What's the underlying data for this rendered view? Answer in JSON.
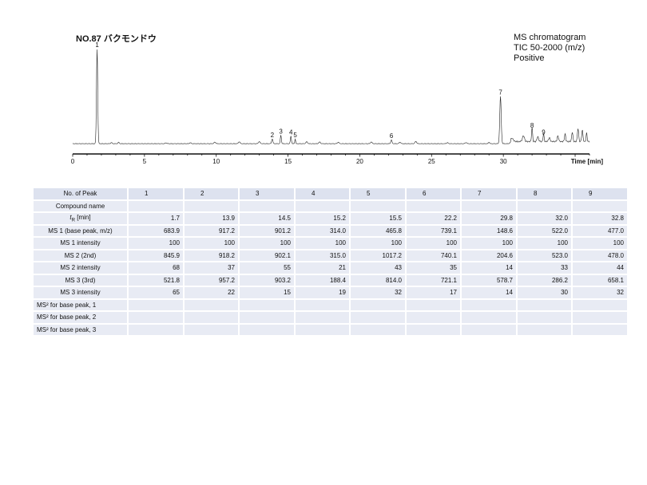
{
  "header": {
    "title": "NO.87 バクモンドウ",
    "info_lines": [
      "MS chromatogram",
      "TIC 50-2000 (m/z)",
      "Positive"
    ]
  },
  "chart_data": {
    "type": "line",
    "xlabel": "Time [min]",
    "xlim": [
      0,
      36
    ],
    "x_ticks": [
      0,
      5,
      10,
      15,
      20,
      25,
      30
    ],
    "ylabel": "",
    "ylim": [
      0,
      100
    ],
    "grid": false,
    "peaks": [
      {
        "label": "1",
        "x": 1.7,
        "y": 100
      },
      {
        "label": "2",
        "x": 13.9,
        "y": 5
      },
      {
        "label": "3",
        "x": 14.5,
        "y": 9
      },
      {
        "label": "4",
        "x": 15.2,
        "y": 8
      },
      {
        "label": "5",
        "x": 15.5,
        "y": 5
      },
      {
        "label": "6",
        "x": 22.2,
        "y": 4
      },
      {
        "label": "7",
        "x": 29.8,
        "y": 50
      },
      {
        "label": "8",
        "x": 32.0,
        "y": 15
      },
      {
        "label": "9",
        "x": 32.8,
        "y": 8
      }
    ]
  },
  "table": {
    "columns": [
      "No. of Peak",
      "1",
      "2",
      "3",
      "4",
      "5",
      "6",
      "7",
      "8",
      "9"
    ],
    "rows": [
      {
        "label": "Compound name",
        "cells": [
          "",
          "",
          "",
          "",
          "",
          "",
          "",
          "",
          ""
        ]
      },
      {
        "label": "t",
        "label_sub": "R",
        "label_rest": " [min]",
        "cells": [
          "1.7",
          "13.9",
          "14.5",
          "15.2",
          "15.5",
          "22.2",
          "29.8",
          "32.0",
          "32.8"
        ]
      },
      {
        "label": "MS 1 (base peak, m/z)",
        "cells": [
          "683.9",
          "917.2",
          "901.2",
          "314.0",
          "465.8",
          "739.1",
          "148.6",
          "522.0",
          "477.0"
        ]
      },
      {
        "label": "MS 1 intensity",
        "cells": [
          "100",
          "100",
          "100",
          "100",
          "100",
          "100",
          "100",
          "100",
          "100"
        ]
      },
      {
        "label": "MS 2 (2nd)",
        "cells": [
          "845.9",
          "918.2",
          "902.1",
          "315.0",
          "1017.2",
          "740.1",
          "204.6",
          "523.0",
          "478.0"
        ]
      },
      {
        "label": "MS 2 intensity",
        "cells": [
          "68",
          "37",
          "55",
          "21",
          "43",
          "35",
          "14",
          "33",
          "44"
        ]
      },
      {
        "label": "MS 3 (3rd)",
        "cells": [
          "521.8",
          "957.2",
          "903.2",
          "188.4",
          "814.0",
          "721.1",
          "578.7",
          "286.2",
          "658.1"
        ]
      },
      {
        "label": "MS 3 intensity",
        "cells": [
          "65",
          "22",
          "15",
          "19",
          "32",
          "17",
          "14",
          "30",
          "32"
        ]
      },
      {
        "label": "MS² for base peak, 1",
        "cells": [
          "",
          "",
          "",
          "",
          "",
          "",
          "",
          "",
          ""
        ]
      },
      {
        "label": "MS² for base peak, 2",
        "cells": [
          "",
          "",
          "",
          "",
          "",
          "",
          "",
          "",
          ""
        ]
      },
      {
        "label": "MS² for base peak, 3",
        "cells": [
          "",
          "",
          "",
          "",
          "",
          "",
          "",
          "",
          ""
        ]
      }
    ]
  }
}
